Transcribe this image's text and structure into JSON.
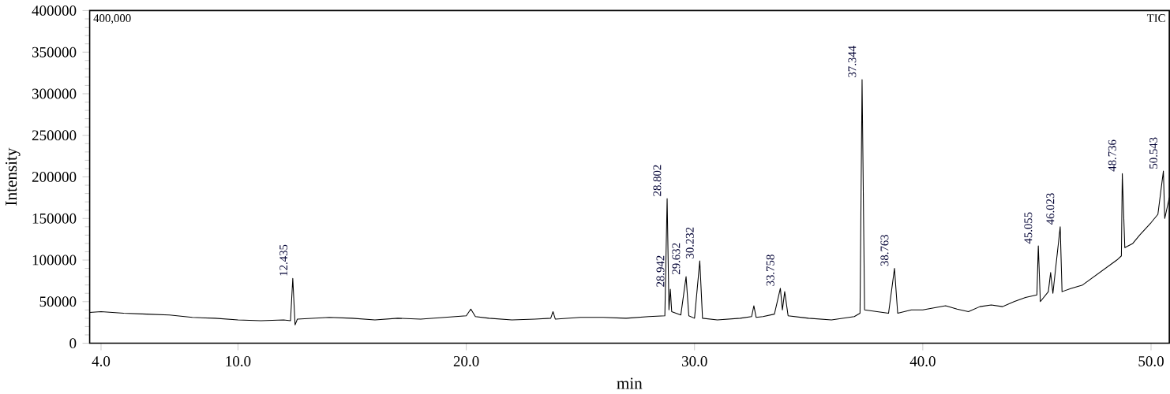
{
  "chart_data": {
    "type": "line",
    "xlabel": "min",
    "ylabel": "Intensity",
    "xlim": [
      3.5,
      50.8
    ],
    "ylim": [
      0,
      400000
    ],
    "xticks": [
      {
        "value": 4,
        "label": "4.0"
      },
      {
        "value": 10,
        "label": "10.0"
      },
      {
        "value": 20,
        "label": "20.0"
      },
      {
        "value": 30,
        "label": "30.0"
      },
      {
        "value": 40,
        "label": "40.0"
      },
      {
        "value": 50,
        "label": "50.0"
      }
    ],
    "yticks": [
      0,
      50000,
      100000,
      150000,
      200000,
      250000,
      300000,
      350000,
      400000
    ],
    "grid": false,
    "marker": "none",
    "line_style": "solid",
    "series": [
      {
        "color": "#000000",
        "x": [
          3.5,
          4,
          5,
          6,
          7,
          8,
          9,
          10,
          11,
          12,
          12.3,
          12.4,
          12.5,
          12.6,
          14,
          15,
          16,
          17,
          18,
          19,
          20,
          20.2,
          20.4,
          21,
          22,
          23,
          23.7,
          23.8,
          23.9,
          25,
          26,
          27,
          28,
          28.7,
          28.8,
          28.88,
          28.94,
          29.0,
          29.4,
          29.63,
          29.75,
          30.0,
          30.23,
          30.35,
          31,
          32,
          32.5,
          32.6,
          32.7,
          33,
          33.5,
          33.76,
          33.85,
          33.95,
          34.1,
          35,
          36,
          37,
          37.25,
          37.34,
          37.45,
          38,
          38.5,
          38.76,
          38.9,
          39.5,
          40,
          41,
          41.5,
          42,
          42.5,
          43,
          43.5,
          44,
          44.5,
          45.0,
          45.06,
          45.15,
          45.5,
          45.6,
          45.7,
          46.02,
          46.1,
          46.5,
          47,
          47.5,
          48,
          48.5,
          48.7,
          48.74,
          48.85,
          49.2,
          49.5,
          50,
          50.3,
          50.54,
          50.6,
          50.8
        ],
        "values": [
          37000,
          38000,
          36000,
          35000,
          34000,
          31000,
          30000,
          28000,
          27000,
          28000,
          27000,
          78000,
          22000,
          29000,
          31000,
          30000,
          28000,
          30000,
          29000,
          31000,
          33000,
          41000,
          32000,
          30000,
          28000,
          29000,
          30000,
          38000,
          29000,
          31000,
          31000,
          30000,
          32000,
          33000,
          174000,
          40000,
          65000,
          38000,
          34000,
          80000,
          33000,
          30000,
          99000,
          30000,
          28000,
          30000,
          32000,
          45000,
          31000,
          32000,
          35000,
          66000,
          40000,
          62000,
          33000,
          30000,
          28000,
          32000,
          36000,
          317000,
          40000,
          38000,
          36000,
          90000,
          36000,
          40000,
          40000,
          45000,
          41000,
          38000,
          44000,
          46000,
          44000,
          50000,
          55000,
          58000,
          117000,
          50000,
          62000,
          85000,
          60000,
          140000,
          62000,
          66000,
          70000,
          80000,
          90000,
          100000,
          105000,
          204000,
          115000,
          120000,
          130000,
          145000,
          155000,
          207000,
          150000,
          175000
        ]
      }
    ],
    "annotations": [
      "400,000",
      "TIC",
      {
        "text": "12.435",
        "x": 12.435,
        "y": 78000
      },
      {
        "text": "28.802",
        "x": 28.802,
        "y": 174000
      },
      {
        "text": "28.942",
        "x": 28.942,
        "y": 65000
      },
      {
        "text": "29.632",
        "x": 29.632,
        "y": 80000
      },
      {
        "text": "30.232",
        "x": 30.232,
        "y": 99000
      },
      {
        "text": "33.758",
        "x": 33.758,
        "y": 66000
      },
      {
        "text": "37.344",
        "x": 37.344,
        "y": 317000
      },
      {
        "text": "38.763",
        "x": 38.763,
        "y": 90000
      },
      {
        "text": "45.055",
        "x": 45.055,
        "y": 117000
      },
      {
        "text": "46.023",
        "x": 46.023,
        "y": 140000
      },
      {
        "text": "48.736",
        "x": 48.736,
        "y": 204000
      },
      {
        "text": "50.543",
        "x": 50.543,
        "y": 207000
      }
    ]
  }
}
